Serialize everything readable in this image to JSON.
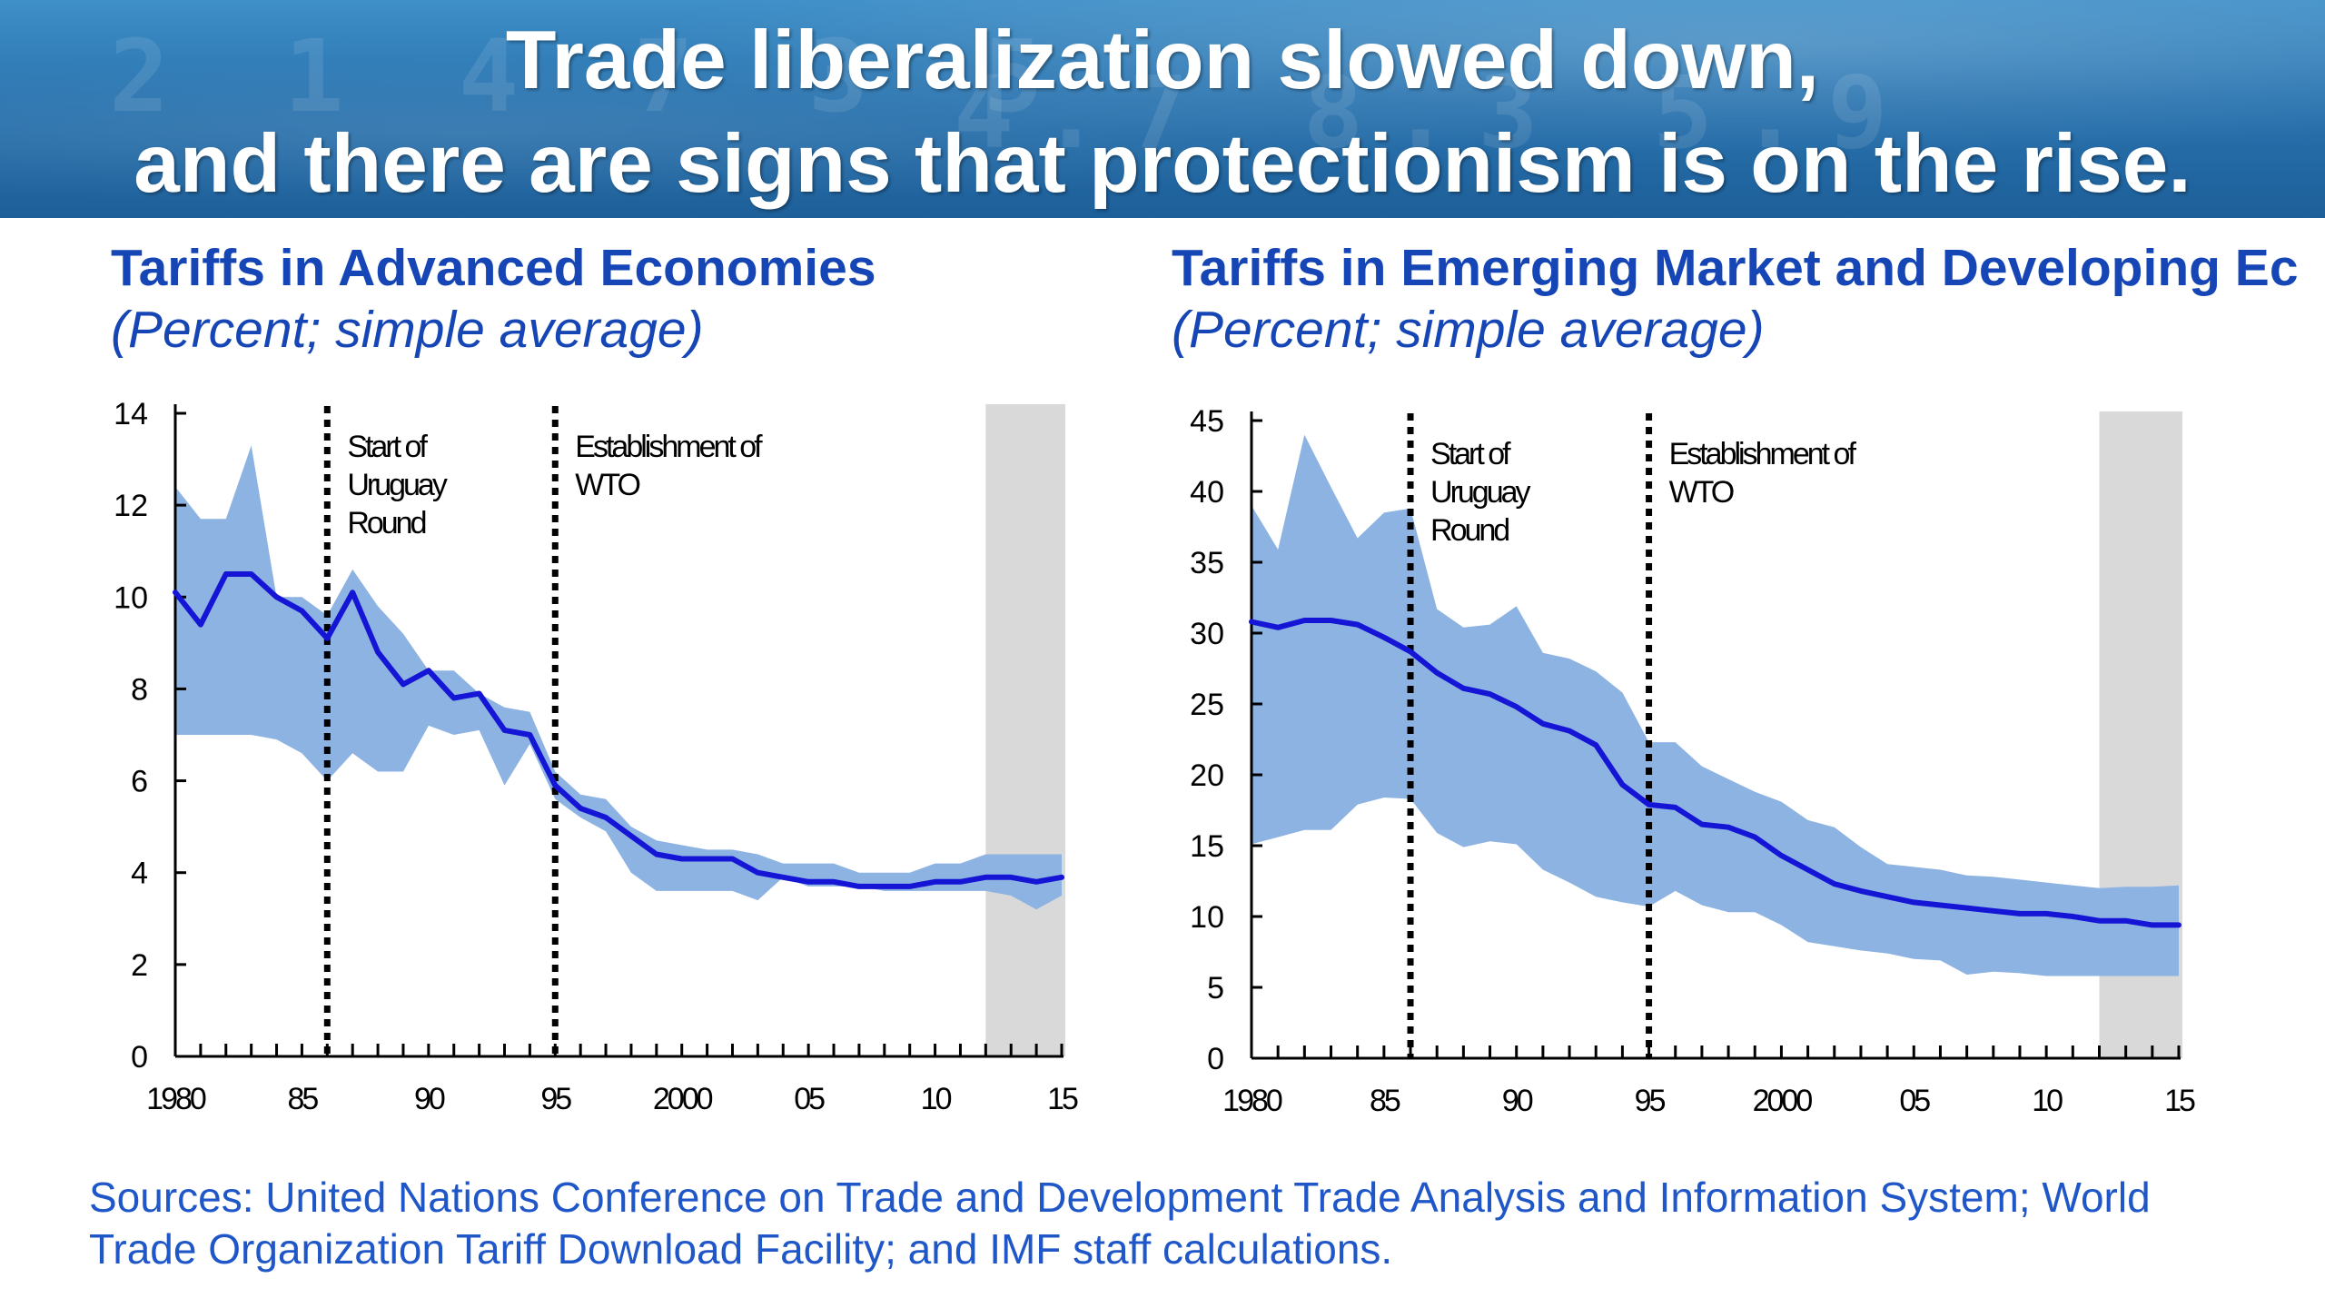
{
  "slide": {
    "title_line1": "Trade liberalization slowed down,",
    "title_line2": "and there are signs that protectionism is on the rise.",
    "sources_line1": "Sources: United Nations Conference on Trade and Development Trade Analysis and Information System; World",
    "sources_line2": "Trade Organization Tariff Download Facility; and IMF staff calculations."
  },
  "colors": {
    "band": "#8db3e2",
    "line": "#1515d6",
    "shade": "#d9d9d9",
    "title": "#1646b5"
  },
  "chart_data": [
    {
      "type": "line",
      "title": "Tariffs in Advanced Economies",
      "subtitle": "(Percent; simple average)",
      "xlabel": "",
      "ylabel": "",
      "xlim": [
        1980,
        2015
      ],
      "ylim": [
        0,
        14
      ],
      "y_ticks": [
        0,
        2,
        4,
        6,
        8,
        10,
        12,
        14
      ],
      "x_tick_values": [
        1980,
        1985,
        1990,
        1995,
        2000,
        2005,
        2010,
        2015
      ],
      "x_tick_labels": [
        "1980",
        "85",
        "90",
        "95",
        "2000",
        "05",
        "10",
        "15"
      ],
      "shaded_region": [
        2012,
        2015
      ],
      "annotations": [
        {
          "x": 1986,
          "lines": [
            "Start of",
            "Uruguay",
            "Round"
          ]
        },
        {
          "x": 1995,
          "lines": [
            "Establishment of",
            "WTO"
          ]
        }
      ],
      "x": [
        1980,
        1981,
        1982,
        1983,
        1984,
        1985,
        1986,
        1987,
        1988,
        1989,
        1990,
        1991,
        1992,
        1993,
        1994,
        1995,
        1996,
        1997,
        1998,
        1999,
        2000,
        2001,
        2002,
        2003,
        2004,
        2005,
        2006,
        2007,
        2008,
        2009,
        2010,
        2011,
        2012,
        2013,
        2014,
        2015
      ],
      "series": [
        {
          "name": "",
          "role": "median",
          "values": [
            10.1,
            9.4,
            10.5,
            10.5,
            10.0,
            9.7,
            9.1,
            10.1,
            8.8,
            8.1,
            8.4,
            7.8,
            7.9,
            7.1,
            7.0,
            5.9,
            5.4,
            5.2,
            4.8,
            4.4,
            4.3,
            4.3,
            4.3,
            4.0,
            3.9,
            3.8,
            3.8,
            3.7,
            3.7,
            3.7,
            3.8,
            3.8,
            3.9,
            3.9,
            3.8,
            3.9
          ]
        },
        {
          "name": "",
          "role": "upper",
          "values": [
            12.4,
            11.7,
            11.7,
            13.3,
            10.0,
            10.0,
            9.6,
            10.6,
            9.8,
            9.2,
            8.4,
            8.4,
            7.9,
            7.6,
            7.5,
            6.2,
            5.7,
            5.6,
            5.0,
            4.7,
            4.6,
            4.5,
            4.5,
            4.4,
            4.2,
            4.2,
            4.2,
            4.0,
            4.0,
            4.0,
            4.2,
            4.2,
            4.4,
            4.4,
            4.4,
            4.4
          ]
        },
        {
          "name": "",
          "role": "lower",
          "values": [
            7.0,
            7.0,
            7.0,
            7.0,
            6.9,
            6.6,
            6.0,
            6.6,
            6.2,
            6.2,
            7.2,
            7.0,
            7.1,
            5.9,
            6.8,
            5.6,
            5.2,
            4.9,
            4.0,
            3.6,
            3.6,
            3.6,
            3.6,
            3.4,
            3.9,
            3.7,
            3.7,
            3.7,
            3.6,
            3.6,
            3.6,
            3.6,
            3.6,
            3.5,
            3.2,
            3.5
          ]
        }
      ]
    },
    {
      "type": "line",
      "title": "Tariffs in Emerging Market and Developing Ec",
      "subtitle": "(Percent; simple average)",
      "xlabel": "",
      "ylabel": "",
      "xlim": [
        1980,
        2015
      ],
      "ylim": [
        0,
        45
      ],
      "y_ticks": [
        0,
        5,
        10,
        15,
        20,
        25,
        30,
        35,
        40,
        45
      ],
      "x_tick_values": [
        1980,
        1985,
        1990,
        1995,
        2000,
        2005,
        2010,
        2015
      ],
      "x_tick_labels": [
        "1980",
        "85",
        "90",
        "95",
        "2000",
        "05",
        "10",
        "15"
      ],
      "shaded_region": [
        2012,
        2015
      ],
      "annotations": [
        {
          "x": 1986,
          "lines": [
            "Start of",
            "Uruguay",
            "Round"
          ]
        },
        {
          "x": 1995,
          "lines": [
            "Establishment of",
            "WTO"
          ]
        }
      ],
      "x": [
        1980,
        1981,
        1982,
        1983,
        1984,
        1985,
        1986,
        1987,
        1988,
        1989,
        1990,
        1991,
        1992,
        1993,
        1994,
        1995,
        1996,
        1997,
        1998,
        1999,
        2000,
        2001,
        2002,
        2003,
        2004,
        2005,
        2006,
        2007,
        2008,
        2009,
        2010,
        2011,
        2012,
        2013,
        2014,
        2015
      ],
      "series": [
        {
          "name": "",
          "role": "median",
          "values": [
            30.8,
            30.4,
            30.9,
            30.9,
            30.6,
            29.7,
            28.7,
            27.2,
            26.1,
            25.7,
            24.8,
            23.6,
            23.1,
            22.1,
            19.3,
            17.9,
            17.7,
            16.5,
            16.3,
            15.6,
            14.3,
            13.3,
            12.3,
            11.8,
            11.4,
            11.0,
            10.8,
            10.6,
            10.4,
            10.2,
            10.2,
            10.0,
            9.7,
            9.7,
            9.4,
            9.4
          ]
        },
        {
          "name": "",
          "role": "upper",
          "values": [
            39.0,
            35.9,
            44.0,
            40.3,
            36.7,
            38.5,
            38.8,
            31.7,
            30.4,
            30.6,
            31.9,
            28.6,
            28.2,
            27.3,
            25.8,
            22.3,
            22.3,
            20.6,
            19.7,
            18.8,
            18.1,
            16.8,
            16.3,
            14.9,
            13.7,
            13.5,
            13.3,
            12.9,
            12.8,
            12.6,
            12.4,
            12.2,
            12.0,
            12.1,
            12.1,
            12.2
          ]
        },
        {
          "name": "",
          "role": "lower",
          "values": [
            15.1,
            15.6,
            16.1,
            16.1,
            17.9,
            18.4,
            18.3,
            15.9,
            14.9,
            15.3,
            15.1,
            13.3,
            12.4,
            11.4,
            11.0,
            10.7,
            11.8,
            10.8,
            10.3,
            10.3,
            9.4,
            8.2,
            7.9,
            7.6,
            7.4,
            7.0,
            6.9,
            5.9,
            6.1,
            6.0,
            5.8,
            5.8,
            5.8,
            5.8,
            5.8,
            5.8
          ]
        }
      ]
    }
  ]
}
